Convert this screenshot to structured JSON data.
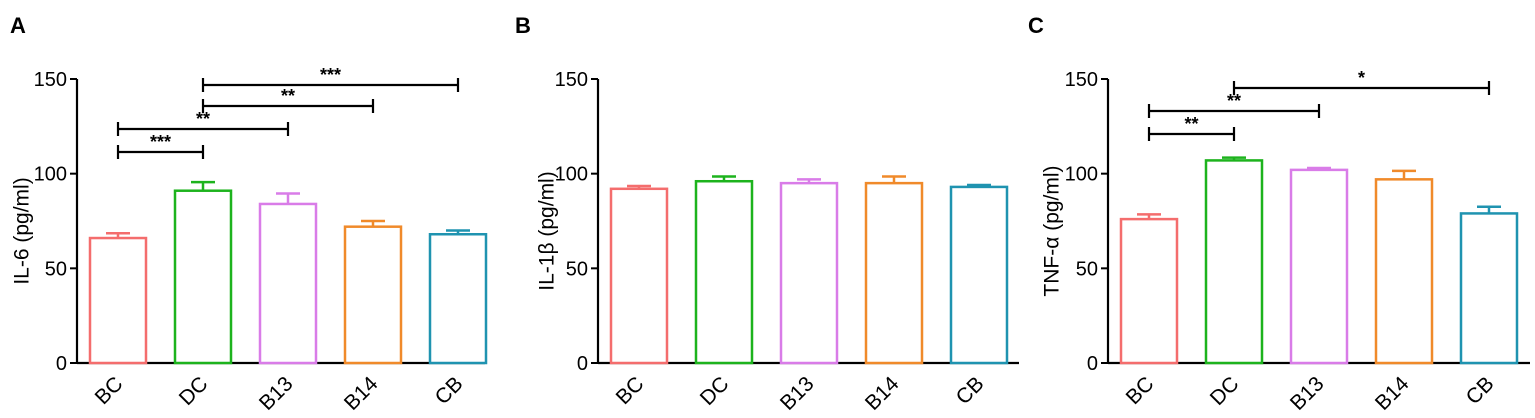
{
  "chart_data": [
    {
      "type": "bar",
      "panel": "A",
      "ylabel": "IL-6 (pg/ml)",
      "ylim": [
        0,
        150
      ],
      "yticks": [
        0,
        50,
        100,
        150
      ],
      "categories": [
        "BC",
        "DC",
        "B13",
        "B14",
        "CB"
      ],
      "values": [
        66,
        91,
        84,
        72,
        68
      ],
      "errors": [
        2.5,
        4.5,
        5.5,
        3,
        2
      ],
      "colors": [
        "#F46D6D",
        "#1DB31D",
        "#D97CE8",
        "#F08A2A",
        "#1F93B0"
      ],
      "significance": [
        {
          "from": "BC",
          "to": "DC",
          "label": "***"
        },
        {
          "from": "BC",
          "to": "B13",
          "label": "**"
        },
        {
          "from": "DC",
          "to": "B14",
          "label": "**"
        },
        {
          "from": "DC",
          "to": "CB",
          "label": "***"
        }
      ]
    },
    {
      "type": "bar",
      "panel": "B",
      "ylabel": "IL-1β (pg/ml)",
      "ylim": [
        0,
        150
      ],
      "yticks": [
        0,
        50,
        100,
        150
      ],
      "categories": [
        "BC",
        "DC",
        "B13",
        "B14",
        "CB"
      ],
      "values": [
        92,
        96,
        95,
        95,
        93
      ],
      "errors": [
        1.5,
        2.5,
        2,
        3.5,
        1
      ],
      "colors": [
        "#F46D6D",
        "#1DB31D",
        "#D97CE8",
        "#F08A2A",
        "#1F93B0"
      ],
      "significance": []
    },
    {
      "type": "bar",
      "panel": "C",
      "ylabel": "TNF-α (pg/ml)",
      "ylim": [
        0,
        150
      ],
      "yticks": [
        0,
        50,
        100,
        150
      ],
      "categories": [
        "BC",
        "DC",
        "B13",
        "B14",
        "CB"
      ],
      "values": [
        76,
        107,
        102,
        97,
        79
      ],
      "errors": [
        2.5,
        1.5,
        1,
        4.5,
        3.5
      ],
      "colors": [
        "#F46D6D",
        "#1DB31D",
        "#D97CE8",
        "#F08A2A",
        "#1F93B0"
      ],
      "significance": [
        {
          "from": "BC",
          "to": "DC",
          "label": "**"
        },
        {
          "from": "BC",
          "to": "B13",
          "label": "**"
        },
        {
          "from": "DC",
          "to": "CB",
          "label": "*"
        }
      ]
    }
  ]
}
